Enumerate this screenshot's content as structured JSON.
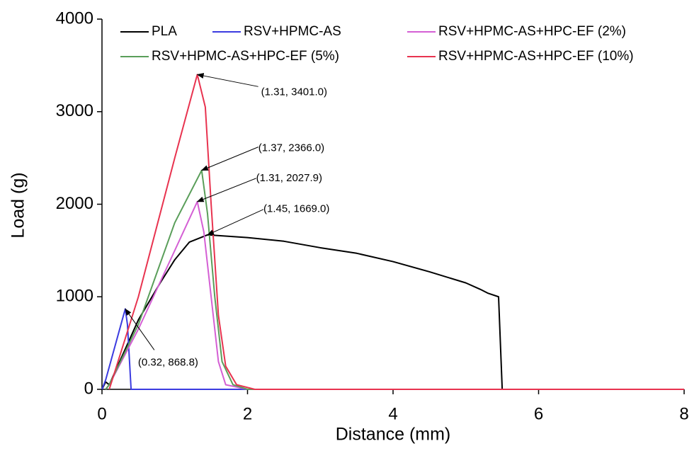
{
  "chart_data": {
    "type": "line",
    "xlabel": "Distance (mm)",
    "ylabel": "Load (g)",
    "xlim": [
      0,
      8
    ],
    "xticks": [
      0,
      2,
      4,
      6,
      8
    ],
    "ylim": [
      0,
      4000
    ],
    "yticks": [
      0,
      1000,
      2000,
      3000,
      4000
    ],
    "series": [
      {
        "name": "PLA",
        "color": "#000000",
        "x": [
          0,
          0.05,
          0.1,
          0.3,
          0.5,
          0.8,
          1.0,
          1.2,
          1.45,
          2.0,
          2.5,
          3.0,
          3.5,
          4.0,
          4.5,
          5.0,
          5.2,
          5.3,
          5.45,
          5.5,
          8
        ],
        "values": [
          0,
          80,
          50,
          400,
          750,
          1150,
          1400,
          1590,
          1669,
          1640,
          1600,
          1530,
          1470,
          1380,
          1270,
          1150,
          1080,
          1040,
          1000,
          0,
          0
        ]
      },
      {
        "name": "RSV+HPMC-AS",
        "color": "#3b3be0",
        "x": [
          0,
          0.05,
          0.32,
          0.35,
          0.4,
          8
        ],
        "values": [
          0,
          100,
          868.8,
          700,
          0,
          0
        ]
      },
      {
        "name": "RSV+HPMC-AS+HPC-EF (2%)",
        "color": "#d45fd4",
        "x": [
          0.05,
          0.1,
          0.5,
          1.0,
          1.31,
          1.4,
          1.5,
          1.6,
          1.7,
          2.0,
          8
        ],
        "values": [
          0,
          50,
          650,
          1500,
          2027.9,
          1700,
          1000,
          300,
          50,
          0,
          0
        ]
      },
      {
        "name": "RSV+HPMC-AS+HPC-EF (5%)",
        "color": "#5a9e5a",
        "x": [
          0.05,
          0.1,
          0.5,
          1.0,
          1.37,
          1.45,
          1.55,
          1.65,
          1.8,
          2.0,
          8
        ],
        "values": [
          0,
          50,
          700,
          1800,
          2366,
          1900,
          1000,
          300,
          50,
          0,
          0
        ]
      },
      {
        "name": "RSV+HPMC-AS+HPC-EF (10%)",
        "color": "#e8334f",
        "x": [
          0.1,
          0.5,
          1.0,
          1.31,
          1.42,
          1.5,
          1.6,
          1.7,
          1.85,
          2.1,
          8
        ],
        "values": [
          0,
          1000,
          2500,
          3401,
          3050,
          2000,
          800,
          250,
          50,
          0,
          0
        ]
      }
    ],
    "annotations": [
      {
        "text": "(1.31, 3401.0)",
        "x": 1.31,
        "y": 3401
      },
      {
        "text": "(1.37, 2366.0)",
        "x": 1.37,
        "y": 2366
      },
      {
        "text": "(1.31, 2027.9)",
        "x": 1.31,
        "y": 2027.9
      },
      {
        "text": "(1.45, 1669.0)",
        "x": 1.45,
        "y": 1669
      },
      {
        "text": "(0.32, 868.8)",
        "x": 0.32,
        "y": 868.8
      }
    ]
  }
}
